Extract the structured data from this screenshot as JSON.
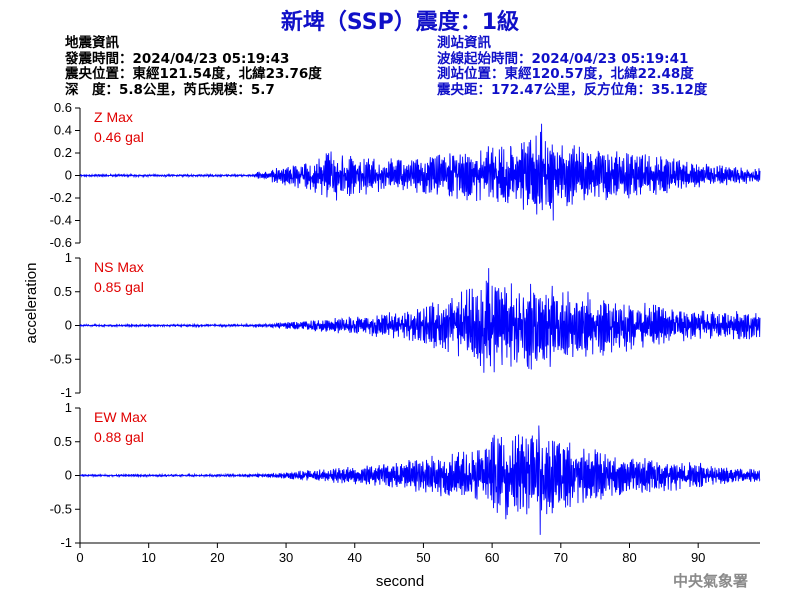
{
  "title": "新埤（SSP）震度：1級",
  "event_info": {
    "heading": "地震資訊",
    "origin_time": "發震時間：2024/04/23 05:19:43",
    "epicenter": "震央位置：東經121.54度，北緯23.76度",
    "depth_magnitude": "深　度：5.8公里，芮氏規模：5.7"
  },
  "station_info": {
    "heading": "測站資訊",
    "wave_start": "波線起始時間：2024/04/23 05:19:41",
    "station_location": "測站位置：東經120.57度，北緯22.48度",
    "distance_azimuth": "震央距：172.47公里，反方位角：35.12度"
  },
  "footer": "中央氣象署",
  "colors": {
    "title": "#1010c8",
    "trace": "#0000ff",
    "max_label": "#e00000",
    "station_text": "#1010c8"
  },
  "chart_data": {
    "type": "line",
    "xlabel": "second",
    "ylabel": "acceleration",
    "xlim": [
      0,
      99
    ],
    "xticks": [
      0,
      10,
      20,
      30,
      40,
      50,
      60,
      70,
      80,
      90
    ],
    "grid": false,
    "panels": [
      {
        "name": "Z",
        "max_label": "Z Max",
        "max_value": "0.46 gal",
        "ylim": [
          -0.6,
          0.6
        ],
        "yticks": [
          0.6,
          0.4,
          0.2,
          0,
          -0.2,
          -0.4,
          -0.6
        ],
        "ytick_labels": [
          "0.6",
          "0.4",
          "0.2",
          "0",
          "-0.2",
          "-0.4",
          "-0.6"
        ],
        "envelope": [
          [
            0,
            0.01
          ],
          [
            25,
            0.01
          ],
          [
            26,
            0.04
          ],
          [
            28,
            0.07
          ],
          [
            30,
            0.09
          ],
          [
            32,
            0.14
          ],
          [
            34,
            0.2
          ],
          [
            36,
            0.28
          ],
          [
            38,
            0.22
          ],
          [
            40,
            0.18
          ],
          [
            45,
            0.16
          ],
          [
            50,
            0.18
          ],
          [
            55,
            0.22
          ],
          [
            58,
            0.24
          ],
          [
            61,
            0.3
          ],
          [
            64,
            0.32
          ],
          [
            66,
            0.38
          ],
          [
            67,
            0.45
          ],
          [
            68,
            0.36
          ],
          [
            70,
            0.3
          ],
          [
            75,
            0.24
          ],
          [
            80,
            0.22
          ],
          [
            85,
            0.17
          ],
          [
            90,
            0.12
          ],
          [
            95,
            0.08
          ],
          [
            99,
            0.07
          ]
        ],
        "max_point": [
          67.2,
          0.46
        ],
        "min_point": [
          68.9,
          -0.4
        ]
      },
      {
        "name": "NS",
        "max_label": "NS Max",
        "max_value": "0.85 gal",
        "ylim": [
          -1,
          1
        ],
        "yticks": [
          1,
          0.5,
          0,
          -0.5,
          -1
        ],
        "ytick_labels": [
          "1",
          "0.5",
          "0",
          "-0.5",
          "-1"
        ],
        "envelope": [
          [
            0,
            0.015
          ],
          [
            25,
            0.02
          ],
          [
            30,
            0.05
          ],
          [
            35,
            0.1
          ],
          [
            40,
            0.14
          ],
          [
            45,
            0.2
          ],
          [
            50,
            0.3
          ],
          [
            55,
            0.5
          ],
          [
            58,
            0.6
          ],
          [
            60,
            0.72
          ],
          [
            62,
            0.8
          ],
          [
            64,
            0.7
          ],
          [
            67,
            0.72
          ],
          [
            70,
            0.55
          ],
          [
            75,
            0.5
          ],
          [
            80,
            0.4
          ],
          [
            85,
            0.32
          ],
          [
            90,
            0.24
          ],
          [
            95,
            0.22
          ],
          [
            99,
            0.2
          ]
        ],
        "max_point": [
          59.5,
          0.85
        ],
        "min_point": [
          58.8,
          -0.7
        ]
      },
      {
        "name": "EW",
        "max_label": "EW Max",
        "max_value": "0.88 gal",
        "ylim": [
          -1,
          1
        ],
        "yticks": [
          1,
          0.5,
          0,
          -0.5,
          -1
        ],
        "ytick_labels": [
          "1",
          "0.5",
          "0",
          "-0.5",
          "-1"
        ],
        "envelope": [
          [
            0,
            0.015
          ],
          [
            25,
            0.02
          ],
          [
            30,
            0.05
          ],
          [
            35,
            0.1
          ],
          [
            40,
            0.15
          ],
          [
            45,
            0.2
          ],
          [
            50,
            0.28
          ],
          [
            55,
            0.35
          ],
          [
            58,
            0.45
          ],
          [
            60,
            0.62
          ],
          [
            62,
            0.65
          ],
          [
            65,
            0.72
          ],
          [
            67,
            0.72
          ],
          [
            70,
            0.55
          ],
          [
            75,
            0.4
          ],
          [
            80,
            0.3
          ],
          [
            85,
            0.25
          ],
          [
            90,
            0.2
          ],
          [
            95,
            0.12
          ],
          [
            99,
            0.1
          ]
        ],
        "max_point": [
          66.8,
          0.74
        ],
        "min_point": [
          67.0,
          -0.88
        ]
      }
    ]
  }
}
